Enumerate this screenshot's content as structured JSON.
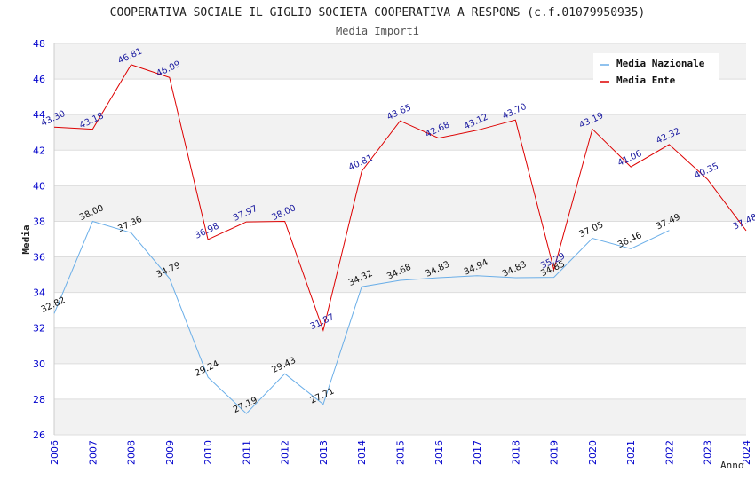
{
  "chart_data": {
    "type": "line",
    "title": "COOPERATIVA SOCIALE IL GIGLIO SOCIETA COOPERATIVA A RESPONS (c.f.01079950935)",
    "subtitle": "Media Importi",
    "xlabel": "Anno",
    "ylabel": "Media",
    "ylim": [
      26,
      48
    ],
    "yticks": [
      26,
      28,
      30,
      32,
      34,
      36,
      38,
      40,
      42,
      44,
      46,
      48
    ],
    "x": [
      "2006",
      "2007",
      "2008",
      "2009",
      "2010",
      "2011",
      "2012",
      "2013",
      "2014",
      "2015",
      "2016",
      "2017",
      "2018",
      "2019",
      "2020",
      "2021",
      "2022",
      "2023",
      "2024"
    ],
    "grid": true,
    "legend_position": "top-right",
    "series": [
      {
        "name": "Media Nazionale",
        "color": "#6aaee8",
        "values": [
          32.82,
          38.0,
          37.36,
          34.79,
          29.24,
          27.19,
          29.43,
          27.71,
          34.32,
          34.68,
          34.83,
          34.94,
          34.83,
          34.85,
          37.05,
          36.46,
          37.49,
          null,
          null
        ],
        "labels": [
          "32.82",
          "38.00",
          "37.36",
          "34.79",
          "29.24",
          "27.19",
          "29.43",
          "27.71",
          "34.32",
          "34.68",
          "34.83",
          "34.94",
          "34.83",
          "34.85",
          "37.05",
          "36.46",
          "37.49",
          "",
          ""
        ]
      },
      {
        "name": "Media Ente",
        "color": "#dd0000",
        "values": [
          43.3,
          43.18,
          46.81,
          46.09,
          36.98,
          37.97,
          38.0,
          31.87,
          40.81,
          43.65,
          42.68,
          43.12,
          43.7,
          35.29,
          43.19,
          41.06,
          42.32,
          40.35,
          37.48
        ],
        "labels": [
          "43.30",
          "43.18",
          "46.81",
          "46.09",
          "36.98",
          "37.97",
          "38.00",
          "31.87",
          "40.81",
          "43.65",
          "42.68",
          "43.12",
          "43.70",
          "35.29",
          "43.19",
          "41.06",
          "42.32",
          "40.35",
          "37.48"
        ]
      }
    ]
  }
}
